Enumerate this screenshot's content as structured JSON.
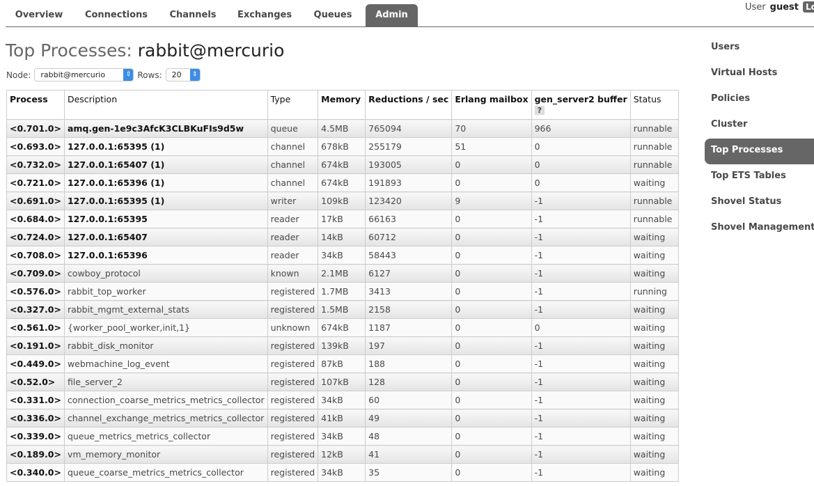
{
  "tabs": [
    {
      "label": "Overview"
    },
    {
      "label": "Connections"
    },
    {
      "label": "Channels"
    },
    {
      "label": "Exchanges"
    },
    {
      "label": "Queues"
    },
    {
      "label": "Admin",
      "active": true
    }
  ],
  "user": {
    "prefix": "User",
    "name": "guest",
    "logout": "Log out"
  },
  "title": {
    "prefix": "Top Processes:",
    "node": "rabbit@mercurio"
  },
  "controls": {
    "node_label": "Node:",
    "node_value": "rabbit@mercurio",
    "rows_label": "Rows:",
    "rows_value": "20"
  },
  "table": {
    "headers": [
      "Process",
      "Description",
      "Type",
      "Memory",
      "Reductions / sec",
      "Erlang mailbox",
      "gen_server2 buffer",
      "Status"
    ],
    "help": "?",
    "rows": [
      [
        "<0.701.0>",
        "amq.gen-1e9c3AfcK3CLBKuFIs9d5w",
        "queue",
        "4.5MB",
        "765094",
        "70",
        "966",
        "runnable"
      ],
      [
        "<0.693.0>",
        "127.0.0.1:65395 (1)",
        "channel",
        "678kB",
        "255179",
        "51",
        "0",
        "runnable"
      ],
      [
        "<0.732.0>",
        "127.0.0.1:65407 (1)",
        "channel",
        "674kB",
        "193005",
        "0",
        "0",
        "runnable"
      ],
      [
        "<0.721.0>",
        "127.0.0.1:65396 (1)",
        "channel",
        "674kB",
        "191893",
        "0",
        "0",
        "waiting"
      ],
      [
        "<0.691.0>",
        "127.0.0.1:65395 (1)",
        "writer",
        "109kB",
        "123420",
        "9",
        "-1",
        "runnable"
      ],
      [
        "<0.684.0>",
        "127.0.0.1:65395",
        "reader",
        "17kB",
        "66163",
        "0",
        "-1",
        "runnable"
      ],
      [
        "<0.724.0>",
        "127.0.0.1:65407",
        "reader",
        "14kB",
        "60712",
        "0",
        "-1",
        "waiting"
      ],
      [
        "<0.708.0>",
        "127.0.0.1:65396",
        "reader",
        "34kB",
        "58443",
        "0",
        "-1",
        "waiting"
      ],
      [
        "<0.709.0>",
        "cowboy_protocol",
        "known",
        "2.1MB",
        "6127",
        "0",
        "-1",
        "waiting"
      ],
      [
        "<0.576.0>",
        "rabbit_top_worker",
        "registered",
        "1.7MB",
        "3413",
        "0",
        "-1",
        "running"
      ],
      [
        "<0.327.0>",
        "rabbit_mgmt_external_stats",
        "registered",
        "1.5MB",
        "2158",
        "0",
        "-1",
        "waiting"
      ],
      [
        "<0.561.0>",
        "{worker_pool_worker,init,1}",
        "unknown",
        "674kB",
        "1187",
        "0",
        "0",
        "waiting"
      ],
      [
        "<0.191.0>",
        "rabbit_disk_monitor",
        "registered",
        "139kB",
        "197",
        "0",
        "-1",
        "waiting"
      ],
      [
        "<0.449.0>",
        "webmachine_log_event",
        "registered",
        "87kB",
        "188",
        "0",
        "-1",
        "waiting"
      ],
      [
        "<0.52.0>",
        "file_server_2",
        "registered",
        "107kB",
        "128",
        "0",
        "-1",
        "waiting"
      ],
      [
        "<0.331.0>",
        "connection_coarse_metrics_metrics_collector",
        "registered",
        "34kB",
        "60",
        "0",
        "-1",
        "waiting"
      ],
      [
        "<0.336.0>",
        "channel_exchange_metrics_metrics_collector",
        "registered",
        "41kB",
        "49",
        "0",
        "-1",
        "waiting"
      ],
      [
        "<0.339.0>",
        "queue_metrics_metrics_collector",
        "registered",
        "34kB",
        "48",
        "0",
        "-1",
        "waiting"
      ],
      [
        "<0.189.0>",
        "vm_memory_monitor",
        "registered",
        "12kB",
        "41",
        "0",
        "-1",
        "waiting"
      ],
      [
        "<0.340.0>",
        "queue_coarse_metrics_metrics_collector",
        "registered",
        "34kB",
        "35",
        "0",
        "-1",
        "waiting"
      ]
    ]
  },
  "sidebar": [
    {
      "label": "Users"
    },
    {
      "label": "Virtual Hosts"
    },
    {
      "label": "Policies"
    },
    {
      "label": "Cluster"
    },
    {
      "label": "Top Processes",
      "active": true
    },
    {
      "label": "Top ETS Tables"
    },
    {
      "label": "Shovel Status"
    },
    {
      "label": "Shovel Management"
    }
  ]
}
